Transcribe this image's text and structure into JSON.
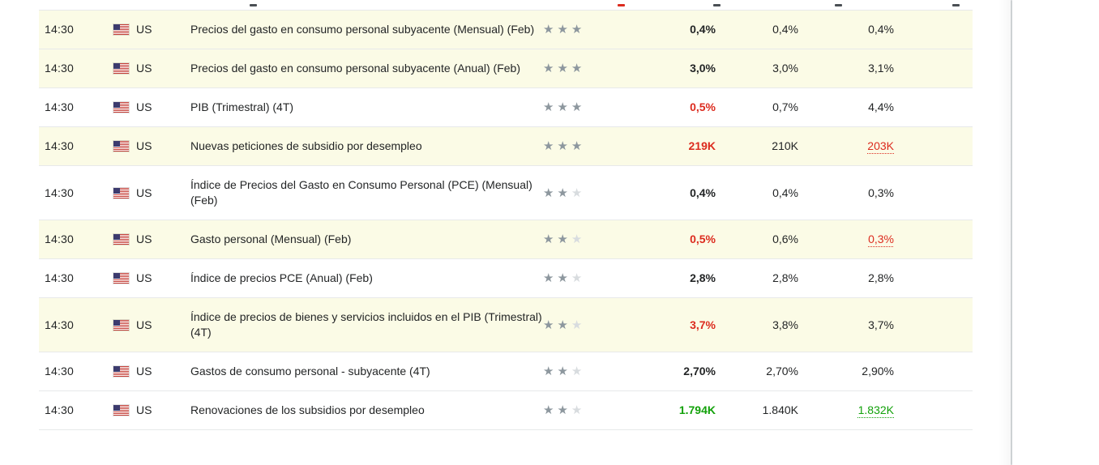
{
  "colors": {
    "text": "#232526",
    "row_line": "#e7e9ea",
    "highlight_bg": "#fbfbe6",
    "negative_red": "#dc2b1e",
    "positive_green": "#12a10a",
    "star_filled": "#8d979e",
    "star_empty": "#d8dcdf",
    "scrollbar": "#cdd1d3"
  },
  "icons": {
    "star": "★",
    "us_flag": "us-flag"
  },
  "table": {
    "rows": [
      {
        "time": "14:30",
        "country": "US",
        "event": "Precios del gasto en consumo personal subyacente (Mensual) (Feb)",
        "importance": 3,
        "max_stars": 3,
        "actual": "0,4%",
        "actual_color": "neutral",
        "forecast": "0,4%",
        "previous": "0,4%",
        "previous_color": "neutral",
        "previous_revised": false,
        "highlighted": true
      },
      {
        "time": "14:30",
        "country": "US",
        "event": "Precios del gasto en consumo personal subyacente (Anual) (Feb)",
        "importance": 3,
        "max_stars": 3,
        "actual": "3,0%",
        "actual_color": "neutral",
        "forecast": "3,0%",
        "previous": "3,1%",
        "previous_color": "neutral",
        "previous_revised": false,
        "highlighted": true
      },
      {
        "time": "14:30",
        "country": "US",
        "event": "PIB (Trimestral) (4T)",
        "importance": 3,
        "max_stars": 3,
        "actual": "0,5%",
        "actual_color": "red",
        "forecast": "0,7%",
        "previous": "4,4%",
        "previous_color": "neutral",
        "previous_revised": false,
        "highlighted": false
      },
      {
        "time": "14:30",
        "country": "US",
        "event": "Nuevas peticiones de subsidio por desempleo",
        "importance": 3,
        "max_stars": 3,
        "actual": "219K",
        "actual_color": "red",
        "forecast": "210K",
        "previous": "203K",
        "previous_color": "red",
        "previous_revised": true,
        "highlighted": true
      },
      {
        "time": "14:30",
        "country": "US",
        "event": "Índice de Precios del Gasto en Consumo Personal (PCE) (Mensual) (Feb)",
        "importance": 2,
        "max_stars": 3,
        "actual": "0,4%",
        "actual_color": "neutral",
        "forecast": "0,4%",
        "previous": "0,3%",
        "previous_color": "neutral",
        "previous_revised": false,
        "highlighted": false
      },
      {
        "time": "14:30",
        "country": "US",
        "event": "Gasto personal (Mensual) (Feb)",
        "importance": 2,
        "max_stars": 3,
        "actual": "0,5%",
        "actual_color": "red",
        "forecast": "0,6%",
        "previous": "0,3%",
        "previous_color": "red",
        "previous_revised": true,
        "highlighted": true
      },
      {
        "time": "14:30",
        "country": "US",
        "event": "Índice de precios PCE (Anual) (Feb)",
        "importance": 2,
        "max_stars": 3,
        "actual": "2,8%",
        "actual_color": "neutral",
        "forecast": "2,8%",
        "previous": "2,8%",
        "previous_color": "neutral",
        "previous_revised": false,
        "highlighted": false
      },
      {
        "time": "14:30",
        "country": "US",
        "event": "Índice de precios de bienes y servicios incluidos en el PIB (Trimestral) (4T)",
        "importance": 2,
        "max_stars": 3,
        "actual": "3,7%",
        "actual_color": "red",
        "forecast": "3,8%",
        "previous": "3,7%",
        "previous_color": "neutral",
        "previous_revised": false,
        "highlighted": true
      },
      {
        "time": "14:30",
        "country": "US",
        "event": "Gastos de consumo personal - subyacente (4T)",
        "importance": 2,
        "max_stars": 3,
        "actual": "2,70%",
        "actual_color": "neutral",
        "forecast": "2,70%",
        "previous": "2,90%",
        "previous_color": "neutral",
        "previous_revised": false,
        "highlighted": false
      },
      {
        "time": "14:30",
        "country": "US",
        "event": "Renovaciones de los subsidios por desempleo",
        "importance": 2,
        "max_stars": 3,
        "actual": "1.794K",
        "actual_color": "green",
        "forecast": "1.840K",
        "previous": "1.832K",
        "previous_color": "green",
        "previous_revised": true,
        "highlighted": false
      }
    ]
  }
}
